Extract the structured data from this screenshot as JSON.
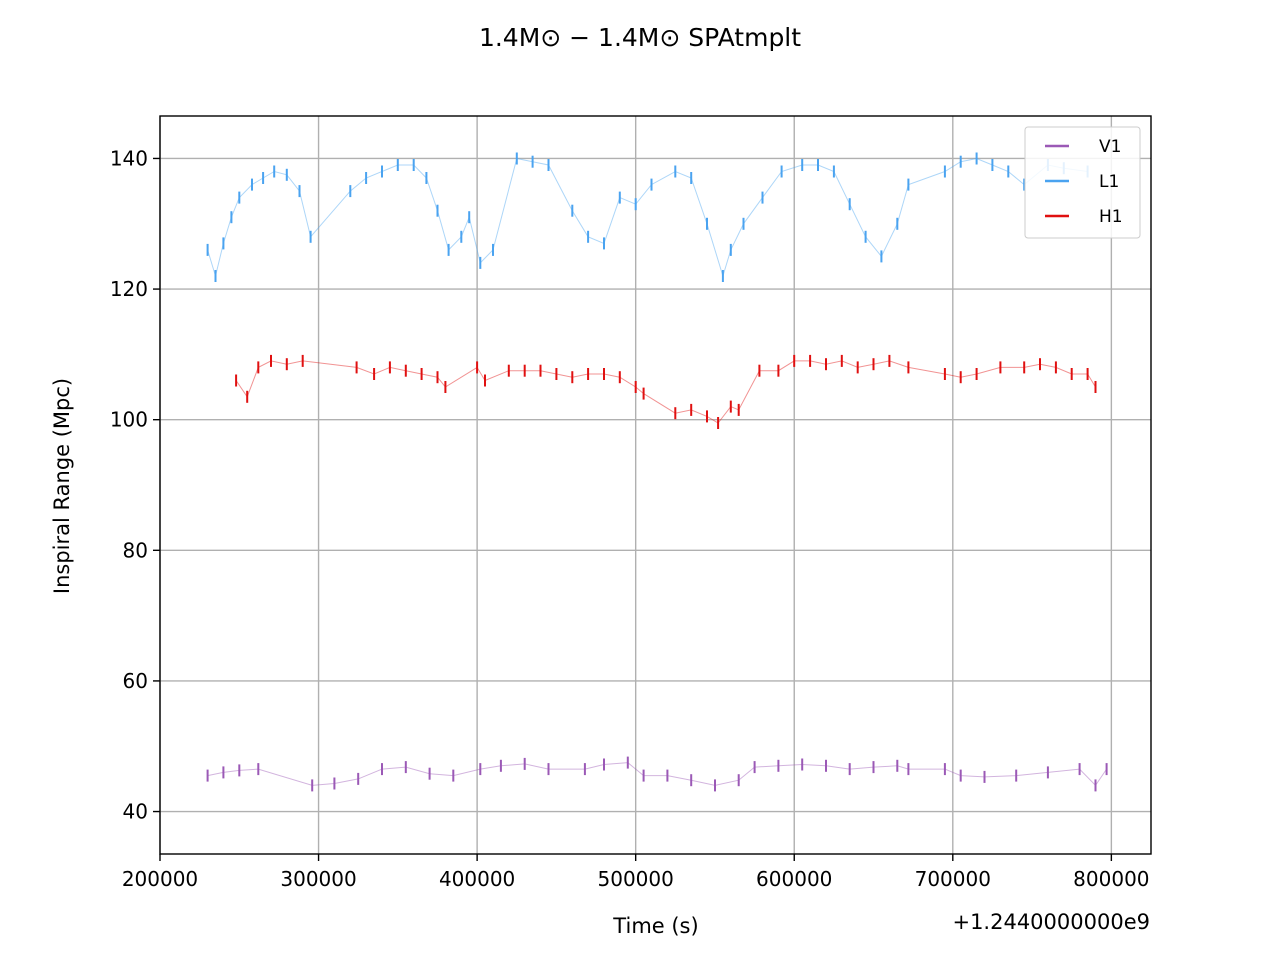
{
  "chart_data": {
    "type": "scatter",
    "title": "1.4M⊙ − 1.4M⊙ SPAtmplt",
    "xlabel": "Time (s)",
    "ylabel": "Inspiral Range (Mpc)",
    "x_offset_label": "+1.2440000000e9",
    "xlim": [
      200000,
      825000
    ],
    "ylim": [
      33.5,
      146.5
    ],
    "x_ticks": [
      200000,
      300000,
      400000,
      500000,
      600000,
      700000,
      800000
    ],
    "x_tick_labels": [
      "200000",
      "300000",
      "400000",
      "500000",
      "600000",
      "700000",
      "800000"
    ],
    "y_ticks": [
      40,
      60,
      80,
      100,
      120,
      140
    ],
    "y_tick_labels": [
      "40",
      "60",
      "80",
      "100",
      "120",
      "140"
    ],
    "grid": true,
    "legend_position": "top-right",
    "series": [
      {
        "name": "V1",
        "color": "#9b59b6",
        "x": [
          230000,
          240000,
          250000,
          262000,
          296000,
          310000,
          325000,
          340000,
          355000,
          370000,
          385000,
          402000,
          415000,
          430000,
          445000,
          468000,
          480000,
          495000,
          505000,
          520000,
          535000,
          550000,
          565000,
          575000,
          590000,
          605000,
          620000,
          635000,
          650000,
          665000,
          672000,
          695000,
          705000,
          720000,
          740000,
          760000,
          780000,
          790000,
          797000
        ],
        "y": [
          45.5,
          46.0,
          46.3,
          46.5,
          44.0,
          44.3,
          45.0,
          46.5,
          46.8,
          45.8,
          45.5,
          46.5,
          47.0,
          47.3,
          46.5,
          46.5,
          47.2,
          47.5,
          45.5,
          45.5,
          44.8,
          44.0,
          44.8,
          46.8,
          47.0,
          47.2,
          47.0,
          46.5,
          46.8,
          47.0,
          46.5,
          46.5,
          45.5,
          45.3,
          45.5,
          46.0,
          46.5,
          44.0,
          46.5
        ]
      },
      {
        "name": "L1",
        "color": "#4aa3f0",
        "x": [
          230000,
          235000,
          240000,
          245000,
          250000,
          258000,
          265000,
          272000,
          280000,
          288000,
          295000,
          320000,
          330000,
          340000,
          350000,
          360000,
          368000,
          375000,
          382000,
          390000,
          395000,
          402000,
          410000,
          425000,
          435000,
          445000,
          460000,
          470000,
          480000,
          490000,
          500000,
          510000,
          525000,
          535000,
          545000,
          555000,
          560000,
          568000,
          580000,
          592000,
          605000,
          615000,
          625000,
          635000,
          645000,
          655000,
          665000,
          672000,
          695000,
          705000,
          715000,
          725000,
          735000,
          745000,
          760000,
          770000,
          785000
        ],
        "y": [
          126,
          122,
          127,
          131,
          134,
          136,
          137,
          138,
          137.5,
          135,
          128,
          135,
          137,
          138,
          139,
          139,
          137,
          132,
          126,
          128,
          131,
          124,
          126,
          140,
          139.5,
          139,
          132,
          128,
          127,
          134,
          133,
          136,
          138,
          137,
          130,
          122,
          126,
          130,
          134,
          138,
          139,
          139,
          138,
          133,
          128,
          125,
          130,
          136,
          138,
          139.5,
          140,
          139,
          138,
          136,
          139,
          138.5,
          138
        ]
      },
      {
        "name": "H1",
        "color": "#e01010",
        "x": [
          248000,
          255000,
          262000,
          270000,
          280000,
          290000,
          324000,
          335000,
          345000,
          355000,
          365000,
          375000,
          380000,
          400000,
          405000,
          420000,
          430000,
          440000,
          450000,
          460000,
          470000,
          480000,
          490000,
          500000,
          505000,
          525000,
          535000,
          545000,
          552000,
          560000,
          565000,
          578000,
          590000,
          600000,
          610000,
          620000,
          630000,
          640000,
          650000,
          660000,
          672000,
          695000,
          705000,
          715000,
          730000,
          745000,
          755000,
          765000,
          775000,
          785000,
          790000
        ],
        "y": [
          106,
          103.5,
          108,
          109,
          108.5,
          109,
          108,
          107,
          108,
          107.5,
          107,
          106.5,
          105,
          108,
          106,
          107.5,
          107.5,
          107.5,
          107,
          106.5,
          107,
          107,
          106.5,
          105,
          104,
          101,
          101.5,
          100.5,
          99.5,
          102,
          101.5,
          107.5,
          107.5,
          109,
          109,
          108.5,
          109,
          108,
          108.5,
          109,
          108,
          107,
          106.5,
          107,
          108,
          108,
          108.5,
          108,
          107,
          107,
          105
        ]
      }
    ]
  }
}
